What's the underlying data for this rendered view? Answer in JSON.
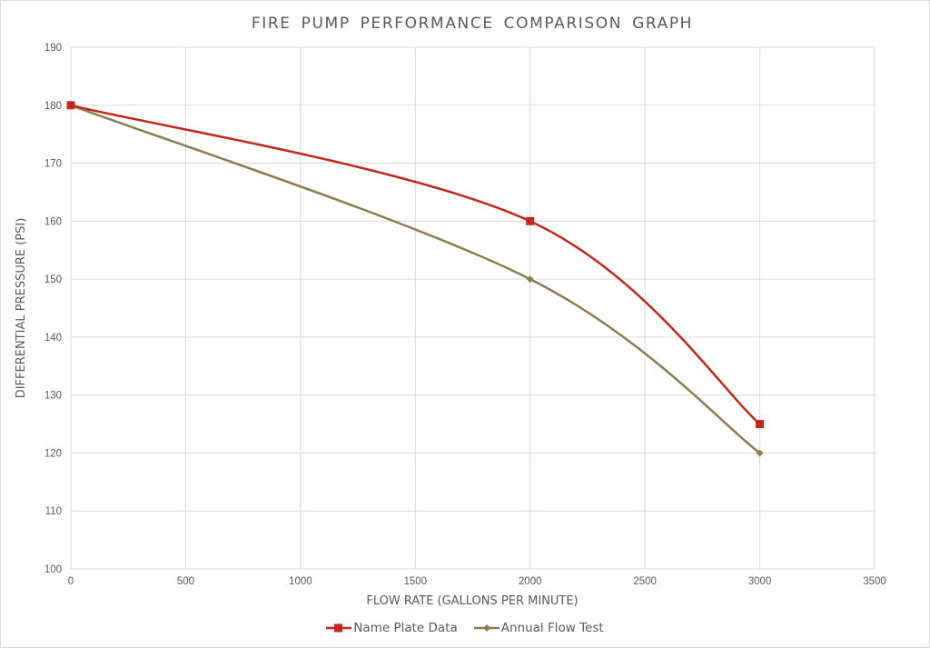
{
  "chart_data": {
    "type": "line",
    "title": "FIRE PUMP PERFORMANCE COMPARISON GRAPH",
    "xlabel": "FLOW RATE (GALLONS PER MINUTE)",
    "ylabel": "DIFFERENTIAL PRESSURE (PSI)",
    "xlim": [
      0,
      3500
    ],
    "ylim": [
      100,
      190
    ],
    "x_ticks": [
      "0",
      "500",
      "1000",
      "1500",
      "2000",
      "2500",
      "3000",
      "3500"
    ],
    "y_ticks": [
      "100",
      "110",
      "120",
      "130",
      "140",
      "150",
      "160",
      "170",
      "180",
      "190"
    ],
    "grid": true,
    "smoothed": true,
    "legend_position": "bottom",
    "series": [
      {
        "name": "Name Plate Data",
        "color": "#c0291d",
        "marker": "square",
        "x": [
          0,
          2000,
          3000
        ],
        "y": [
          180,
          160,
          125
        ]
      },
      {
        "name": "Annual Flow Test",
        "color": "#8b7d4e",
        "marker": "diamond",
        "x": [
          0,
          2000,
          3000
        ],
        "y": [
          180,
          150,
          120
        ]
      }
    ]
  },
  "legend": {
    "items": [
      {
        "label": "Name Plate Data",
        "color": "#c0291d"
      },
      {
        "label": "Annual Flow Test",
        "color": "#8b7d4e"
      }
    ]
  }
}
